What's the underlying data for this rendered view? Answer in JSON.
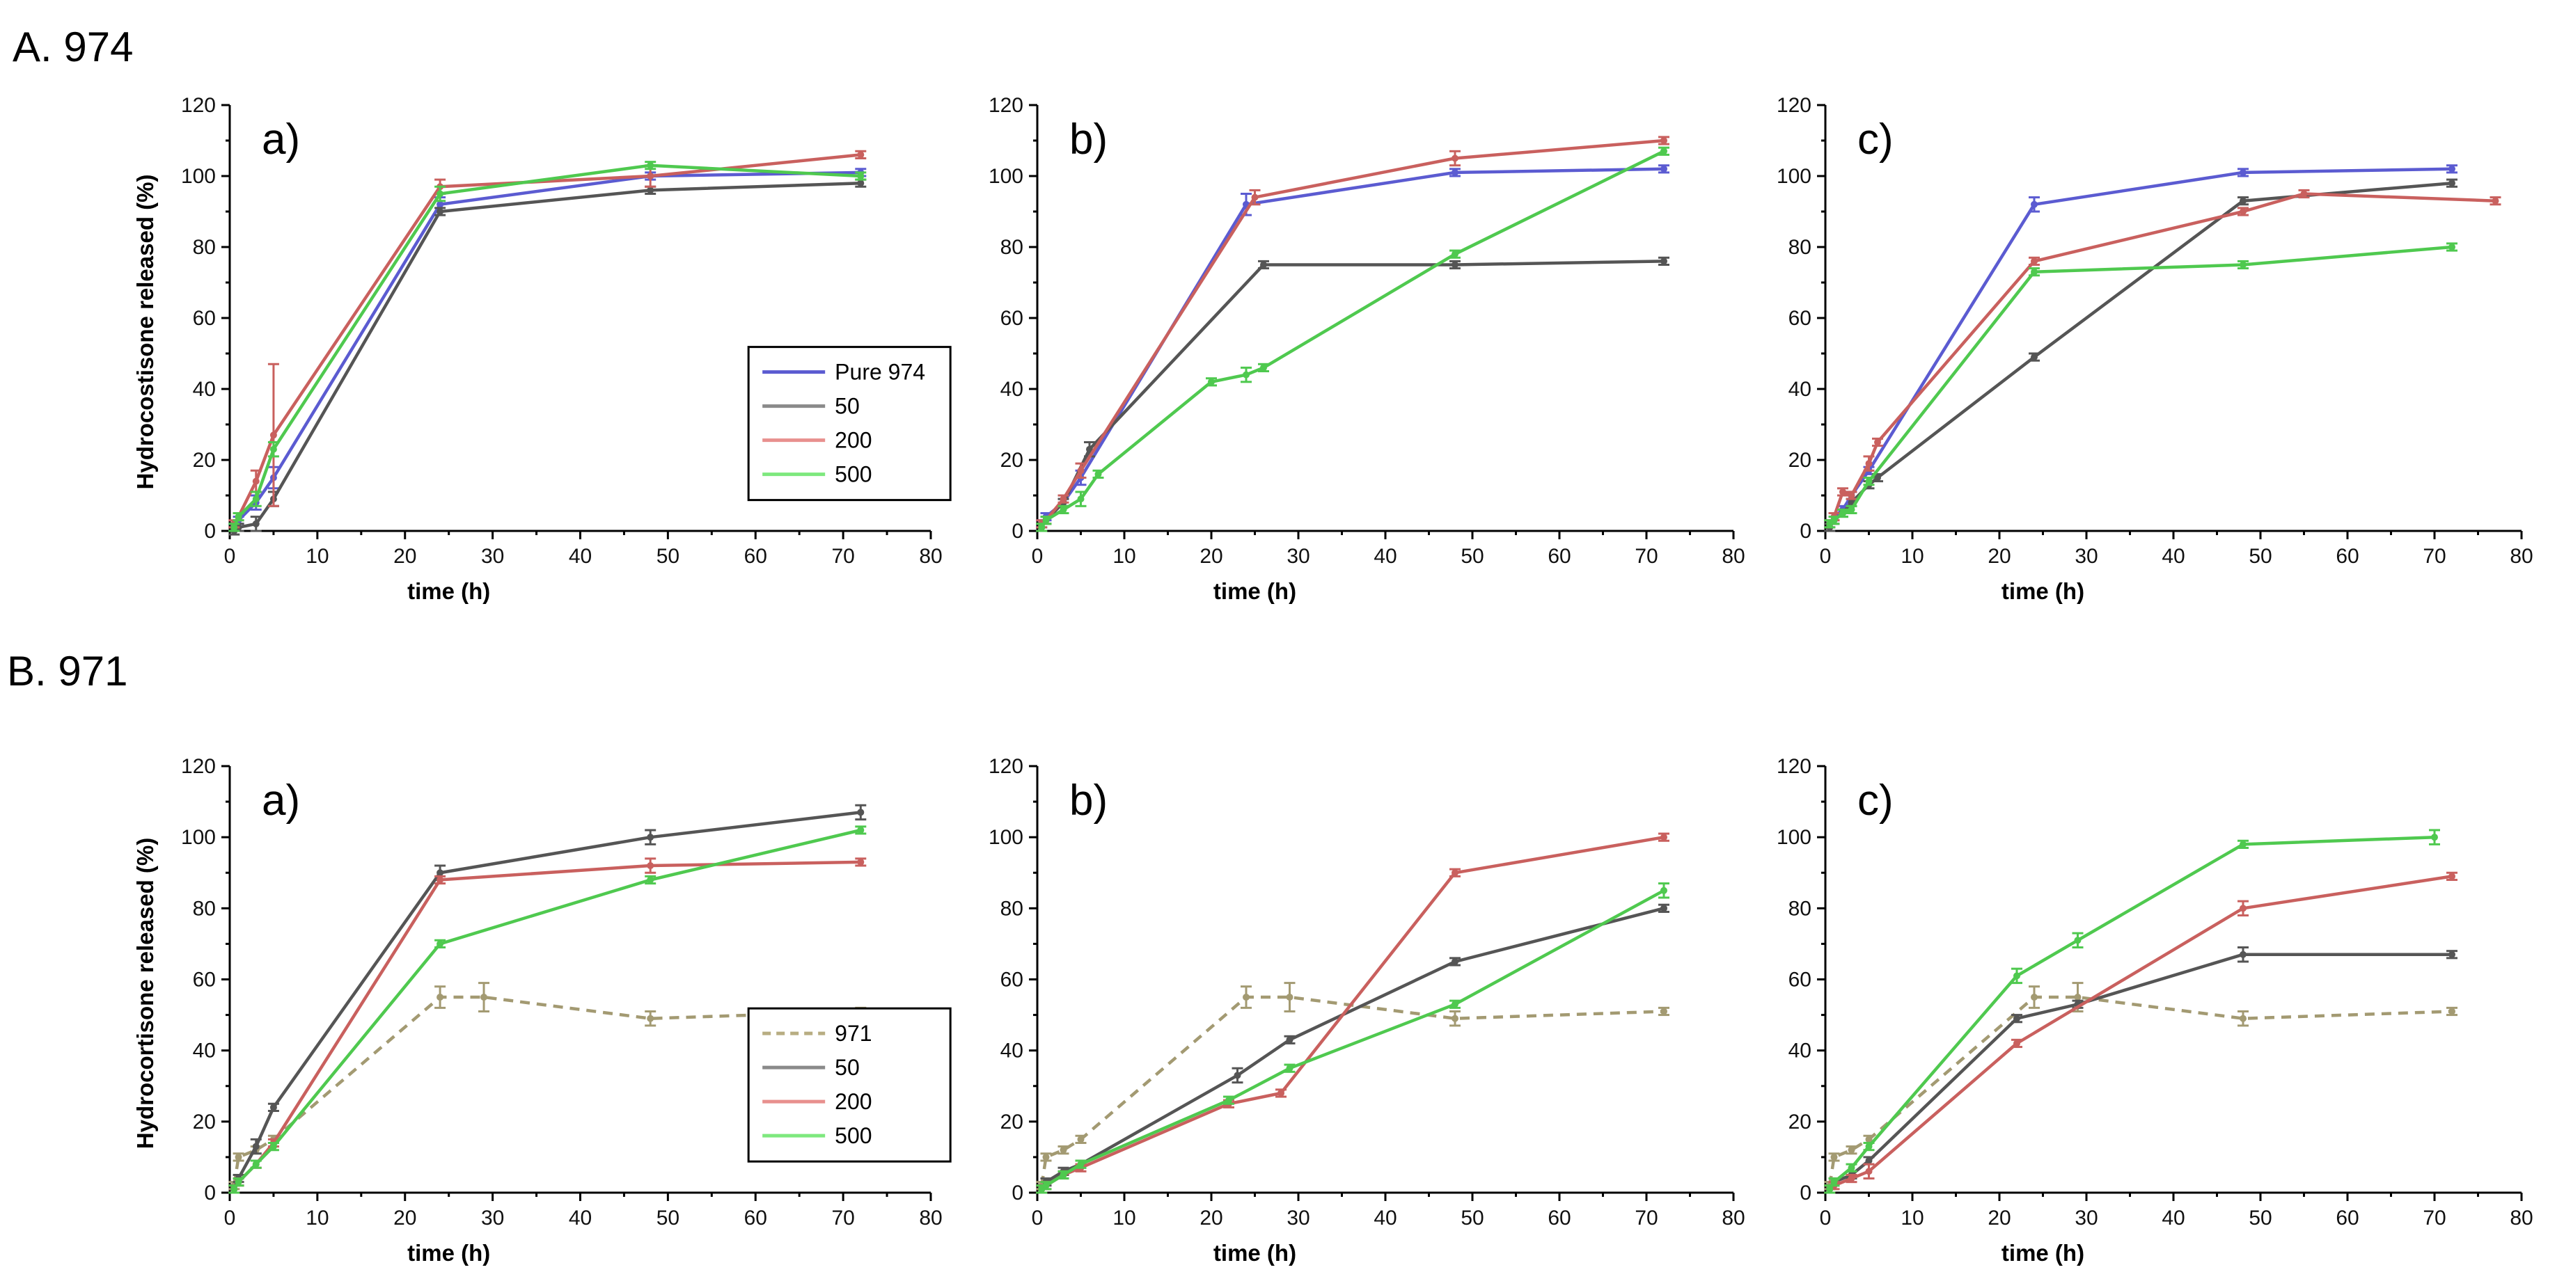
{
  "figure": {
    "section_labels": [
      "A. 974",
      "B. 971"
    ]
  },
  "colors": {
    "pure": "#5b5bd1",
    "s50": "#555555",
    "s200": "#c9605e",
    "s500": "#4fc94f",
    "s971": "#a39a72",
    "legend_pure": "#5b5bd1",
    "legend_50": "#8a8a8a",
    "legend_200": "#e8908e",
    "legend_500": "#7ee87e",
    "legend_971": "#b8ad82"
  },
  "chart_data": [
    {
      "id": "A-a",
      "type": "line",
      "title": "a)",
      "row": 0,
      "col": 0,
      "xlabel": "time (h)",
      "ylabel": "Hydrocostisone released (%)",
      "xlim": [
        0,
        80
      ],
      "ylim": [
        0,
        120
      ],
      "xticks": [
        0,
        10,
        20,
        30,
        40,
        50,
        60,
        70,
        80
      ],
      "yticks": [
        0,
        20,
        40,
        60,
        80,
        100,
        120
      ],
      "legend": {
        "position": "bottom-right",
        "entries": [
          {
            "label": "Pure 974",
            "color_key": "legend_pure",
            "dashed": false
          },
          {
            "label": "50",
            "color_key": "legend_50",
            "dashed": false
          },
          {
            "label": "200",
            "color_key": "legend_200",
            "dashed": false
          },
          {
            "label": "500",
            "color_key": "legend_500",
            "dashed": false
          }
        ]
      },
      "series": [
        {
          "name": "Pure 974",
          "color_key": "pure",
          "dashed": false,
          "x": [
            0.5,
            1,
            3,
            5,
            24,
            48,
            72
          ],
          "y": [
            1,
            3,
            8,
            15,
            92,
            100,
            101
          ],
          "err": [
            1,
            1,
            2,
            3,
            2,
            1,
            1
          ]
        },
        {
          "name": "50",
          "color_key": "s50",
          "dashed": false,
          "x": [
            0.5,
            1,
            3,
            5,
            24,
            48,
            72
          ],
          "y": [
            0,
            1,
            2,
            9,
            90,
            96,
            98
          ],
          "err": [
            1,
            1,
            2,
            2,
            1,
            1,
            1
          ]
        },
        {
          "name": "200",
          "color_key": "s200",
          "dashed": false,
          "x": [
            0.5,
            1,
            3,
            5,
            24,
            48,
            72
          ],
          "y": [
            2,
            4,
            14,
            27,
            97,
            100,
            106
          ],
          "err": [
            1,
            1,
            3,
            20,
            2,
            3,
            1
          ]
        },
        {
          "name": "500",
          "color_key": "s500",
          "dashed": false,
          "x": [
            0.5,
            1,
            3,
            5,
            24,
            48,
            72
          ],
          "y": [
            1,
            4,
            9,
            23,
            95,
            103,
            100
          ],
          "err": [
            1,
            1,
            2,
            2,
            2,
            1,
            1
          ]
        }
      ]
    },
    {
      "id": "A-b",
      "type": "line",
      "title": "b)",
      "row": 0,
      "col": 1,
      "xlabel": "time (h)",
      "ylabel": "",
      "xlim": [
        0,
        80
      ],
      "ylim": [
        0,
        120
      ],
      "xticks": [
        0,
        10,
        20,
        30,
        40,
        50,
        60,
        70,
        80
      ],
      "yticks": [
        0,
        20,
        40,
        60,
        80,
        100,
        120
      ],
      "series": [
        {
          "name": "Pure 974",
          "color_key": "pure",
          "dashed": false,
          "x": [
            0.5,
            1,
            3,
            5,
            24,
            48,
            72
          ],
          "y": [
            2,
            4,
            8,
            15,
            92,
            101,
            102
          ],
          "err": [
            1,
            1,
            1,
            2,
            3,
            1,
            1
          ]
        },
        {
          "name": "50",
          "color_key": "s50",
          "dashed": false,
          "x": [
            0.5,
            1,
            3,
            6,
            26,
            48,
            72
          ],
          "y": [
            1,
            3,
            8,
            23,
            75,
            75,
            76
          ],
          "err": [
            1,
            1,
            1,
            2,
            1,
            1,
            1
          ]
        },
        {
          "name": "200",
          "color_key": "s200",
          "dashed": false,
          "x": [
            0.5,
            1,
            3,
            5,
            25,
            48,
            72
          ],
          "y": [
            2,
            3,
            9,
            17,
            94,
            105,
            110
          ],
          "err": [
            1,
            1,
            1,
            2,
            2,
            2,
            1
          ]
        },
        {
          "name": "500",
          "color_key": "s500",
          "dashed": false,
          "x": [
            0.5,
            1,
            3,
            5,
            7,
            20,
            24,
            26,
            48,
            72
          ],
          "y": [
            1,
            3,
            6,
            9,
            16,
            42,
            44,
            46,
            78,
            107
          ],
          "err": [
            1,
            1,
            1,
            2,
            1,
            1,
            2,
            1,
            1,
            1
          ]
        }
      ]
    },
    {
      "id": "A-c",
      "type": "line",
      "title": "c)",
      "row": 0,
      "col": 2,
      "xlabel": "time (h)",
      "ylabel": "",
      "xlim": [
        0,
        80
      ],
      "ylim": [
        0,
        120
      ],
      "xticks": [
        0,
        10,
        20,
        30,
        40,
        50,
        60,
        70,
        80
      ],
      "yticks": [
        0,
        20,
        40,
        60,
        80,
        100,
        120
      ],
      "series": [
        {
          "name": "Pure 974",
          "color_key": "pure",
          "dashed": false,
          "x": [
            0.5,
            1,
            2,
            3,
            5,
            24,
            48,
            72
          ],
          "y": [
            2,
            4,
            6,
            10,
            17,
            92,
            101,
            102
          ],
          "err": [
            1,
            1,
            1,
            1,
            1,
            2,
            1,
            1
          ]
        },
        {
          "name": "50",
          "color_key": "s50",
          "dashed": false,
          "x": [
            0.5,
            1,
            2,
            3,
            5,
            6,
            24,
            48,
            72
          ],
          "y": [
            1,
            3,
            5,
            8,
            13,
            15,
            49,
            93,
            98
          ],
          "err": [
            1,
            1,
            1,
            1,
            1,
            1,
            1,
            1,
            1
          ]
        },
        {
          "name": "200",
          "color_key": "s200",
          "dashed": false,
          "x": [
            0.5,
            1,
            2,
            3,
            5,
            6,
            24,
            48,
            55,
            77
          ],
          "y": [
            2,
            4,
            11,
            10,
            19,
            25,
            76,
            90,
            95,
            93
          ],
          "err": [
            1,
            1,
            1,
            1,
            2,
            1,
            1,
            1,
            1,
            1
          ]
        },
        {
          "name": "500",
          "color_key": "s500",
          "dashed": false,
          "x": [
            0.5,
            1,
            2,
            3,
            5,
            24,
            48,
            72
          ],
          "y": [
            2,
            3,
            5,
            6,
            14,
            73,
            75,
            80
          ],
          "err": [
            1,
            1,
            1,
            1,
            1,
            1,
            1,
            1
          ]
        }
      ]
    },
    {
      "id": "B-a",
      "type": "line",
      "title": "a)",
      "row": 1,
      "col": 0,
      "xlabel": "time (h)",
      "ylabel": "Hydrocortisone released (%)",
      "xlim": [
        0,
        80
      ],
      "ylim": [
        0,
        120
      ],
      "xticks": [
        0,
        10,
        20,
        30,
        40,
        50,
        60,
        70,
        80
      ],
      "yticks": [
        0,
        20,
        40,
        60,
        80,
        100,
        120
      ],
      "legend": {
        "position": "bottom-right",
        "entries": [
          {
            "label": "971",
            "color_key": "legend_971",
            "dashed": true
          },
          {
            "label": "50",
            "color_key": "legend_50",
            "dashed": false
          },
          {
            "label": "200",
            "color_key": "legend_200",
            "dashed": false
          },
          {
            "label": "500",
            "color_key": "legend_500",
            "dashed": false
          }
        ]
      },
      "series": [
        {
          "name": "971",
          "color_key": "s971",
          "dashed": true,
          "x": [
            0.5,
            1,
            3,
            5,
            24,
            29,
            48,
            72
          ],
          "y": [
            2,
            10,
            12,
            15,
            55,
            55,
            49,
            51
          ],
          "err": [
            1,
            1,
            1,
            1,
            3,
            4,
            2,
            1
          ]
        },
        {
          "name": "50",
          "color_key": "s50",
          "dashed": false,
          "x": [
            0.5,
            1,
            3,
            5,
            24,
            48,
            72
          ],
          "y": [
            1,
            4,
            13,
            24,
            90,
            100,
            107
          ],
          "err": [
            1,
            1,
            2,
            1,
            2,
            2,
            2
          ]
        },
        {
          "name": "200",
          "color_key": "s200",
          "dashed": false,
          "x": [
            0.5,
            1,
            3,
            5,
            24,
            48,
            72
          ],
          "y": [
            1,
            3,
            8,
            14,
            88,
            92,
            93
          ],
          "err": [
            1,
            1,
            1,
            1,
            1,
            2,
            1
          ]
        },
        {
          "name": "500",
          "color_key": "s500",
          "dashed": false,
          "x": [
            0.5,
            1,
            3,
            5,
            24,
            48,
            72
          ],
          "y": [
            1,
            3,
            8,
            13,
            70,
            88,
            102
          ],
          "err": [
            1,
            1,
            1,
            1,
            1,
            1,
            1
          ]
        }
      ]
    },
    {
      "id": "B-b",
      "type": "line",
      "title": "b)",
      "row": 1,
      "col": 1,
      "xlabel": "time (h)",
      "ylabel": "",
      "xlim": [
        0,
        80
      ],
      "ylim": [
        0,
        120
      ],
      "xticks": [
        0,
        10,
        20,
        30,
        40,
        50,
        60,
        70,
        80
      ],
      "yticks": [
        0,
        20,
        40,
        60,
        80,
        100,
        120
      ],
      "series": [
        {
          "name": "971",
          "color_key": "s971",
          "dashed": true,
          "x": [
            0.5,
            1,
            3,
            5,
            24,
            29,
            48,
            72
          ],
          "y": [
            2,
            10,
            12,
            15,
            55,
            55,
            49,
            51
          ],
          "err": [
            1,
            1,
            1,
            1,
            3,
            4,
            2,
            1
          ]
        },
        {
          "name": "50",
          "color_key": "s50",
          "dashed": false,
          "x": [
            0.5,
            1,
            3,
            5,
            23,
            29,
            48,
            72
          ],
          "y": [
            1,
            3,
            6,
            8,
            33,
            43,
            65,
            80
          ],
          "err": [
            1,
            1,
            1,
            1,
            2,
            1,
            1,
            1
          ]
        },
        {
          "name": "200",
          "color_key": "s200",
          "dashed": false,
          "x": [
            0.5,
            1,
            3,
            5,
            22,
            28,
            48,
            72
          ],
          "y": [
            1,
            2,
            5,
            7,
            25,
            28,
            90,
            100
          ],
          "err": [
            1,
            1,
            1,
            1,
            1,
            1,
            1,
            1
          ]
        },
        {
          "name": "500",
          "color_key": "s500",
          "dashed": false,
          "x": [
            0.5,
            1,
            3,
            5,
            22,
            29,
            48,
            72
          ],
          "y": [
            1,
            2,
            5,
            8,
            26,
            35,
            53,
            85
          ],
          "err": [
            1,
            1,
            1,
            1,
            1,
            1,
            1,
            2
          ]
        }
      ]
    },
    {
      "id": "B-c",
      "type": "line",
      "title": "c)",
      "row": 1,
      "col": 2,
      "xlabel": "time (h)",
      "ylabel": "",
      "xlim": [
        0,
        80
      ],
      "ylim": [
        0,
        120
      ],
      "xticks": [
        0,
        10,
        20,
        30,
        40,
        50,
        60,
        70,
        80
      ],
      "yticks": [
        0,
        20,
        40,
        60,
        80,
        100,
        120
      ],
      "series": [
        {
          "name": "971",
          "color_key": "s971",
          "dashed": true,
          "x": [
            0.5,
            1,
            3,
            5,
            24,
            29,
            48,
            72
          ],
          "y": [
            2,
            10,
            12,
            15,
            55,
            55,
            49,
            51
          ],
          "err": [
            1,
            1,
            1,
            1,
            3,
            4,
            2,
            1
          ]
        },
        {
          "name": "50",
          "color_key": "s50",
          "dashed": false,
          "x": [
            0.5,
            1,
            3,
            5,
            22,
            29,
            48,
            72
          ],
          "y": [
            1,
            3,
            5,
            9,
            49,
            53,
            67,
            67
          ],
          "err": [
            1,
            1,
            1,
            1,
            1,
            1,
            2,
            1
          ]
        },
        {
          "name": "200",
          "color_key": "s200",
          "dashed": false,
          "x": [
            0.5,
            1,
            3,
            5,
            22,
            48,
            72
          ],
          "y": [
            1,
            2,
            4,
            6,
            42,
            80,
            89
          ],
          "err": [
            1,
            1,
            1,
            2,
            1,
            2,
            1
          ]
        },
        {
          "name": "500",
          "color_key": "s500",
          "dashed": false,
          "x": [
            0.5,
            1,
            3,
            5,
            22,
            29,
            48,
            70
          ],
          "y": [
            1,
            3,
            7,
            13,
            61,
            71,
            98,
            100
          ],
          "err": [
            1,
            1,
            1,
            1,
            2,
            2,
            1,
            2
          ]
        }
      ]
    }
  ]
}
